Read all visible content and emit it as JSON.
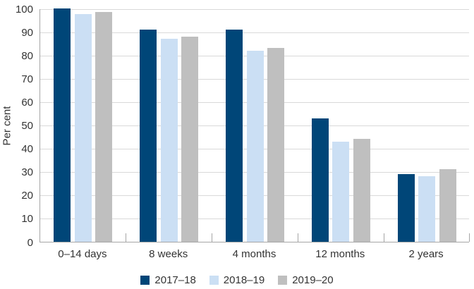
{
  "chart_data": {
    "type": "bar",
    "title": "",
    "xlabel": "",
    "ylabel": "Per cent",
    "categories": [
      "0–14 days",
      "8 weeks",
      "4 months",
      "12 months",
      "2 years"
    ],
    "series": [
      {
        "name": "2017–18",
        "color": "#004678",
        "values": [
          100,
          91,
          91,
          53,
          29
        ]
      },
      {
        "name": "2018–19",
        "color": "#cbdff4",
        "values": [
          97.5,
          87,
          82,
          43,
          28
        ]
      },
      {
        "name": "2019–20",
        "color": "#bfbfbf",
        "values": [
          98.5,
          88,
          83,
          44,
          31
        ]
      }
    ],
    "ylim": [
      0,
      100
    ],
    "ytick_step": 10,
    "grid": true,
    "legend_position": "bottom"
  },
  "colors": {
    "gridline": "#d9d9d9",
    "axis": "#a6a6a6",
    "text": "#333333"
  }
}
